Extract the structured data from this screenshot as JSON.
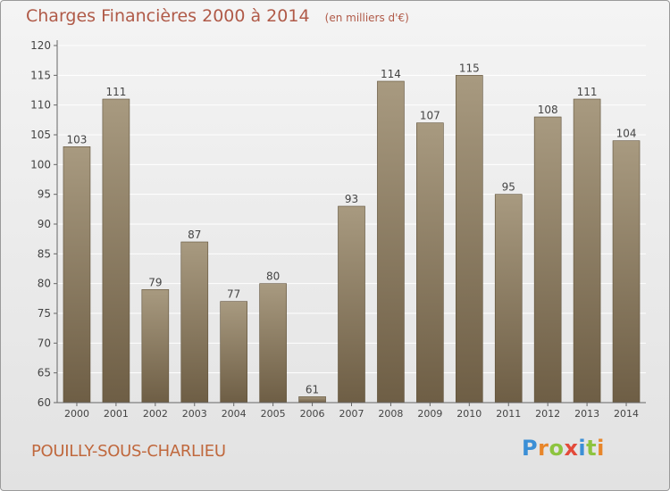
{
  "header": {
    "title": "Charges Financières 2000 à 2014",
    "subtitle": "(en milliers d'€)"
  },
  "footer": {
    "place": "POUILLY-SOUS-CHARLIEU",
    "logo_text": "Proxiti",
    "logo_colors": [
      "#3b8fd6",
      "#e8862a",
      "#8dc43f",
      "#e34a3a",
      "#3b8fd6",
      "#8dc43f",
      "#e8862a"
    ]
  },
  "colors": {
    "bar_top": "#a89a80",
    "bar_bottom": "#6e5e45",
    "grid": "#ffffff",
    "axis": "#666666",
    "text": "#444444"
  },
  "chart_data": {
    "type": "bar",
    "title": "Charges Financières 2000 à 2014",
    "subtitle": "(en milliers d'€)",
    "categories": [
      "2000",
      "2001",
      "2002",
      "2003",
      "2004",
      "2005",
      "2006",
      "2007",
      "2008",
      "2009",
      "2010",
      "2011",
      "2012",
      "2013",
      "2014"
    ],
    "values": [
      103,
      111,
      79,
      87,
      77,
      80,
      61,
      93,
      114,
      107,
      115,
      95,
      108,
      111,
      104
    ],
    "ylim": [
      60,
      120
    ],
    "yticks": [
      60,
      65,
      70,
      75,
      80,
      85,
      90,
      95,
      100,
      105,
      110,
      115,
      120
    ],
    "grid": true,
    "data_labels": true
  }
}
